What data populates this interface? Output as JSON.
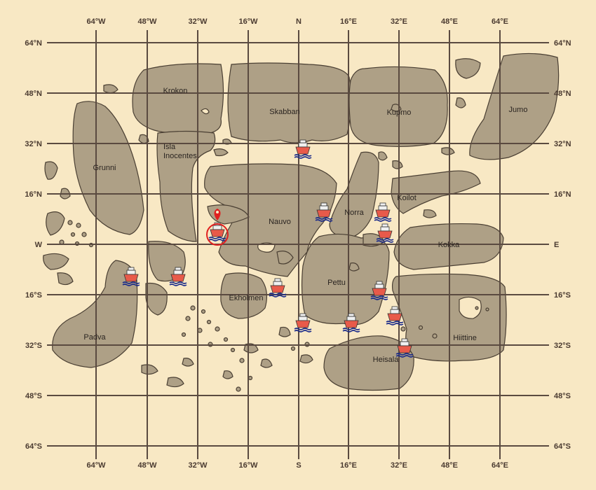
{
  "map": {
    "lon_top": [
      "64°W",
      "48°W",
      "32°W",
      "16°W",
      "N",
      "16°E",
      "32°E",
      "48°E",
      "64°E"
    ],
    "lon_bottom": [
      "64°W",
      "48°W",
      "32°W",
      "16°W",
      "S",
      "16°E",
      "32°E",
      "48°E",
      "64°E"
    ],
    "lat_labels": [
      "64°N",
      "48°N",
      "32°N",
      "16°N",
      "W",
      "16°S",
      "32°S",
      "48°S",
      "64°S"
    ],
    "lat_right": [
      "64°N",
      "48°N",
      "32°N",
      "16°N",
      "E",
      "16°S",
      "32°S",
      "48°S",
      "64°S"
    ],
    "islands": [
      "Krokon",
      "Skabban",
      "Kupmo",
      "Jumo",
      "Grunni",
      "Isla",
      "Inocentes",
      "Nauvo",
      "Norra",
      "Koilot",
      "Kokka",
      "Pettu",
      "Ekholmen",
      "Padva",
      "Hiittine",
      "Heisala"
    ]
  },
  "colors": {
    "sea": "#f8e8c4",
    "land": "#aea086",
    "grid": "#5a4a40",
    "ship_hull": "#e85a4a",
    "marker": "#e02020"
  },
  "ships": [
    {
      "name": "ship-1"
    },
    {
      "name": "ship-2"
    },
    {
      "name": "ship-3"
    },
    {
      "name": "ship-4"
    },
    {
      "name": "ship-5"
    },
    {
      "name": "ship-6"
    },
    {
      "name": "ship-7"
    },
    {
      "name": "ship-8"
    },
    {
      "name": "ship-9"
    },
    {
      "name": "ship-10"
    },
    {
      "name": "ship-11"
    },
    {
      "name": "ship-12"
    },
    {
      "name": "ship-13"
    },
    {
      "name": "ship-14"
    }
  ],
  "selected_marker": {
    "icon": "map-pin-icon",
    "selected_ship": "ship-selected"
  }
}
